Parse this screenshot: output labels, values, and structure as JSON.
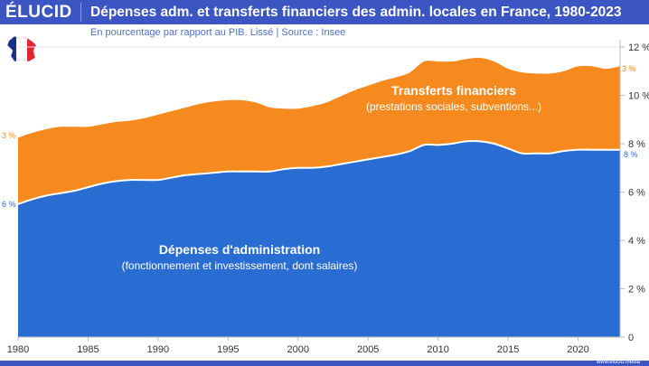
{
  "header": {
    "logo": "ÉLUCID",
    "title": "Dépenses adm. et transferts financiers des admin. locales en France, 1980-2023"
  },
  "subtitle": "En pourcentage par rapport au PIB. Lissé  |  Source : Insee",
  "footer": "www.elucid.media",
  "colors": {
    "brand": "#3b56c2",
    "transfers": "#f78a1e",
    "admin": "#2a6dd2"
  },
  "chart_data": {
    "type": "area",
    "stacked": true,
    "x": [
      1980,
      1981,
      1982,
      1983,
      1984,
      1985,
      1986,
      1987,
      1988,
      1989,
      1990,
      1991,
      1992,
      1993,
      1994,
      1995,
      1996,
      1997,
      1998,
      1999,
      2000,
      2001,
      2002,
      2003,
      2004,
      2005,
      2006,
      2007,
      2008,
      2009,
      2010,
      2011,
      2012,
      2013,
      2014,
      2015,
      2016,
      2017,
      2018,
      2019,
      2020,
      2021,
      2022,
      2023
    ],
    "series": [
      {
        "name": "Dépenses d'administration",
        "subtitle": "(fonctionnement et investissement, dont salaires)",
        "start_label": "6 %",
        "end_label": "8 %",
        "color": "#2a6dd2",
        "values": [
          5.5,
          5.7,
          5.85,
          5.95,
          6.05,
          6.2,
          6.35,
          6.45,
          6.5,
          6.5,
          6.5,
          6.6,
          6.7,
          6.75,
          6.8,
          6.85,
          6.85,
          6.85,
          6.85,
          6.95,
          7.0,
          7.0,
          7.05,
          7.15,
          7.25,
          7.35,
          7.45,
          7.55,
          7.7,
          7.95,
          7.95,
          8.0,
          8.1,
          8.1,
          8.0,
          7.8,
          7.6,
          7.6,
          7.6,
          7.7,
          7.75,
          7.75,
          7.75,
          7.75
        ]
      },
      {
        "name": "Transferts financiers",
        "subtitle": "(prestations sociales, subventions...)",
        "start_label": "3 %",
        "end_label": "3 %",
        "color": "#f78a1e",
        "values": [
          2.75,
          2.75,
          2.75,
          2.75,
          2.65,
          2.5,
          2.45,
          2.45,
          2.45,
          2.55,
          2.7,
          2.75,
          2.8,
          2.9,
          2.95,
          2.95,
          2.95,
          2.85,
          2.65,
          2.5,
          2.45,
          2.55,
          2.65,
          2.8,
          2.95,
          3.05,
          3.15,
          3.2,
          3.25,
          3.45,
          3.45,
          3.4,
          3.4,
          3.45,
          3.4,
          3.3,
          3.35,
          3.3,
          3.3,
          3.3,
          3.45,
          3.45,
          3.35,
          3.45
        ]
      }
    ],
    "x_ticks": [
      "1980",
      "1985",
      "1990",
      "1995",
      "2000",
      "2005",
      "2010",
      "2015",
      "2020"
    ],
    "y_ticks": [
      "0",
      "2 %",
      "4 %",
      "6 %",
      "8 %",
      "10 %",
      "12 %"
    ],
    "ylim": [
      0,
      12
    ],
    "xlim": [
      1980,
      2023
    ],
    "y_axis_side": "right"
  }
}
